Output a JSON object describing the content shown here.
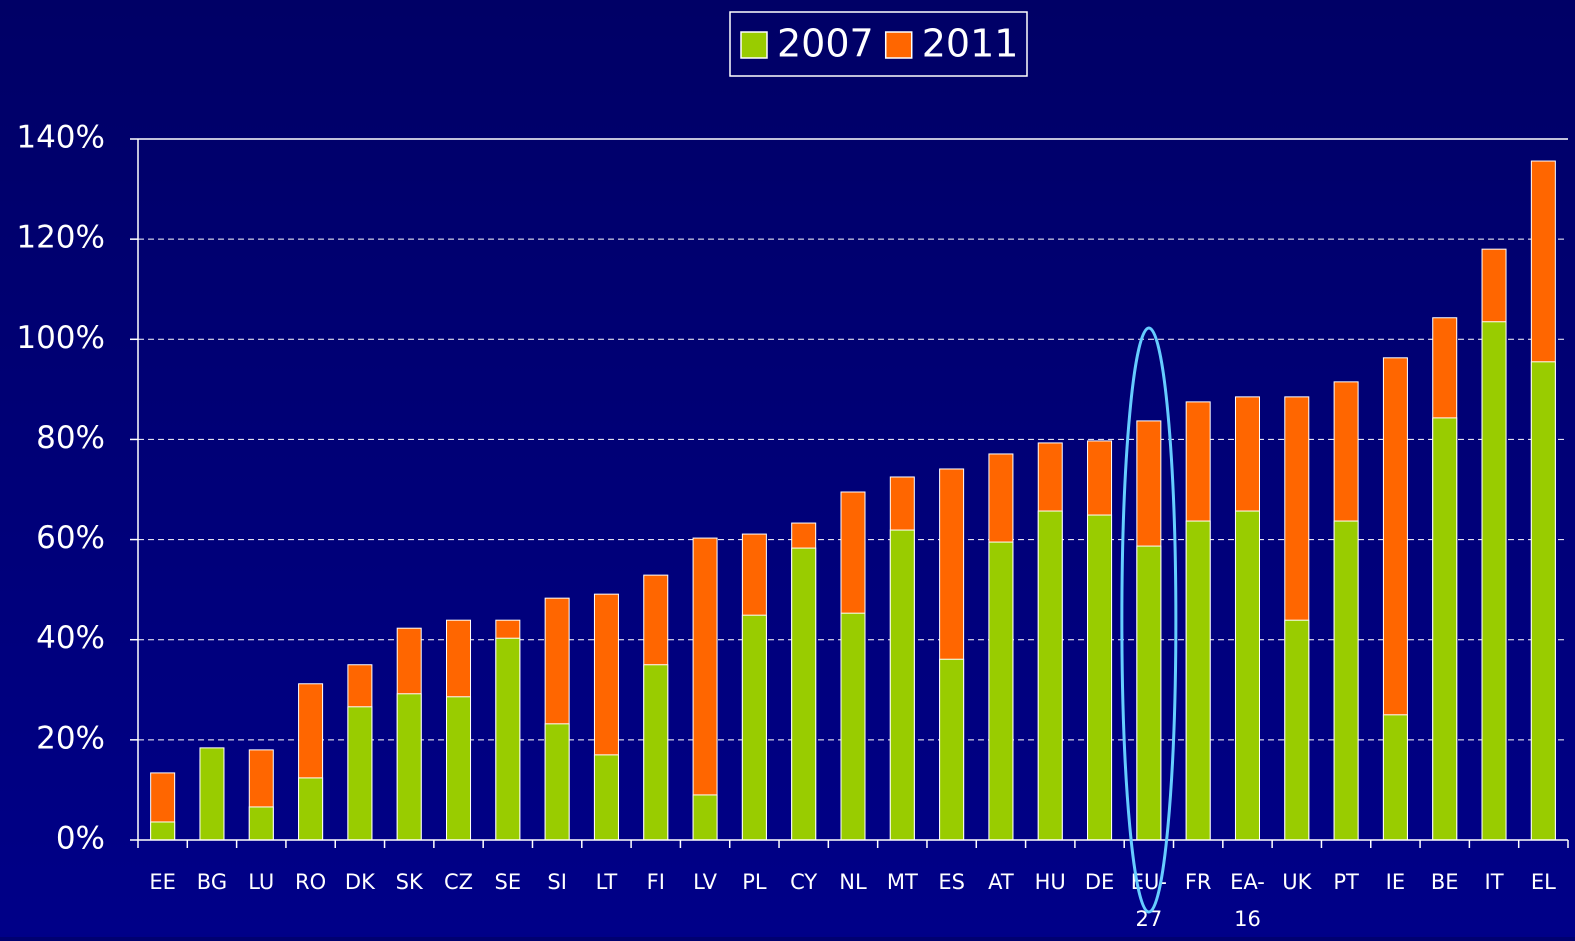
{
  "chart_data": {
    "type": "bar",
    "overlap": true,
    "categories": [
      "EE",
      "BG",
      "LU",
      "RO",
      "DK",
      "SK",
      "CZ",
      "SE",
      "SI",
      "LT",
      "FI",
      "LV",
      "PL",
      "CY",
      "NL",
      "MT",
      "ES",
      "AT",
      "HU",
      "DE",
      "EU-27",
      "FR",
      "EA-16",
      "UK",
      "PT",
      "IE",
      "BE",
      "IT",
      "EL"
    ],
    "series": [
      {
        "name": "2011",
        "color": "#ff6600",
        "values": [
          13.4,
          16,
          18.0,
          31.2,
          35.0,
          42.3,
          43.9,
          43.9,
          48.3,
          49.1,
          52.9,
          60.3,
          61.1,
          63.3,
          69.5,
          72.5,
          74.1,
          77.1,
          79.3,
          79.7,
          83.7,
          87.5,
          88.5,
          88.5,
          91.5,
          96.3,
          104.3,
          118.0,
          135.6
        ]
      },
      {
        "name": "2007",
        "color": "#99cc00",
        "values": [
          3.6,
          18.4,
          6.6,
          12.4,
          26.6,
          29.2,
          28.6,
          40.3,
          23.2,
          17.0,
          35.0,
          9.0,
          44.9,
          58.3,
          45.3,
          61.9,
          36.1,
          59.5,
          65.7,
          64.9,
          58.7,
          63.7,
          65.7,
          43.9,
          63.7,
          25.0,
          84.3,
          103.5,
          95.5
        ]
      }
    ],
    "legend_order": [
      "2007",
      "2011"
    ],
    "ylim": [
      0,
      140
    ],
    "yticks": [
      {
        "value": 0,
        "label": "0%"
      },
      {
        "value": 20,
        "label": "20%"
      },
      {
        "value": 40,
        "label": "40%"
      },
      {
        "value": 60,
        "label": "60%"
      },
      {
        "value": 80,
        "label": "80%"
      },
      {
        "value": 100,
        "label": "100%"
      },
      {
        "value": 120,
        "label": "120%"
      },
      {
        "value": 140,
        "label": "140%"
      }
    ],
    "grid": true,
    "legend": "top"
  }
}
